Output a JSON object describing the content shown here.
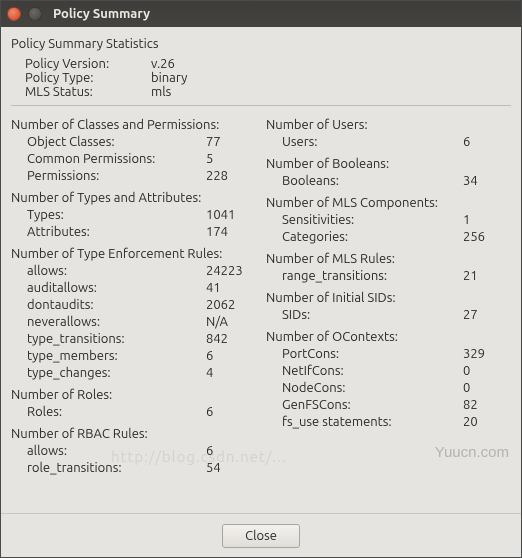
{
  "window": {
    "title": "Policy Summary"
  },
  "header": {
    "title": "Policy Summary Statistics",
    "rows": [
      {
        "k": "Policy Version:",
        "v": "v.26"
      },
      {
        "k": "Policy Type:",
        "v": "binary"
      },
      {
        "k": "MLS Status:",
        "v": "mls"
      }
    ]
  },
  "left": [
    {
      "head": "Number of Classes and Permissions:",
      "rows": [
        {
          "l": "Object Classes:",
          "n": "77"
        },
        {
          "l": "Common Permissions:",
          "n": "5"
        },
        {
          "l": "Permissions:",
          "n": "228"
        }
      ]
    },
    {
      "head": "Number of Types and Attributes:",
      "rows": [
        {
          "l": "Types:",
          "n": "1041"
        },
        {
          "l": "Attributes:",
          "n": "174"
        }
      ]
    },
    {
      "head": "Number of Type Enforcement Rules:",
      "rows": [
        {
          "l": "allows:",
          "n": "24223"
        },
        {
          "l": "auditallows:",
          "n": "41"
        },
        {
          "l": "dontaudits:",
          "n": "2062"
        },
        {
          "l": "neverallows:",
          "n": "N/A"
        },
        {
          "l": "type_transitions:",
          "n": "842"
        },
        {
          "l": "type_members:",
          "n": "6"
        },
        {
          "l": "type_changes:",
          "n": "4"
        }
      ]
    },
    {
      "head": "Number of Roles:",
      "rows": [
        {
          "l": "Roles:",
          "n": "6"
        }
      ]
    },
    {
      "head": "Number of RBAC Rules:",
      "rows": [
        {
          "l": "allows:",
          "n": "6"
        },
        {
          "l": "role_transitions:",
          "n": "54"
        }
      ]
    }
  ],
  "right": [
    {
      "head": "Number of Users:",
      "rows": [
        {
          "l": "Users:",
          "n": "6"
        }
      ]
    },
    {
      "head": "Number of Booleans:",
      "rows": [
        {
          "l": "Booleans:",
          "n": "34"
        }
      ]
    },
    {
      "head": "Number of MLS Components:",
      "rows": [
        {
          "l": "Sensitivities:",
          "n": "1"
        },
        {
          "l": "Categories:",
          "n": "256"
        }
      ]
    },
    {
      "head": "Number of MLS Rules:",
      "rows": [
        {
          "l": "range_transitions:",
          "n": "21"
        }
      ]
    },
    {
      "head": "Number of Initial SIDs:",
      "rows": [
        {
          "l": "SIDs:",
          "n": "27"
        }
      ]
    },
    {
      "head": "Number of OContexts:",
      "rows": [
        {
          "l": "PortCons:",
          "n": "329"
        },
        {
          "l": "NetIfCons:",
          "n": "0"
        },
        {
          "l": "NodeCons:",
          "n": "0"
        },
        {
          "l": "GenFSCons:",
          "n": "82"
        },
        {
          "l": "fs_use statements:",
          "n": "20"
        }
      ]
    }
  ],
  "footer": {
    "close": "Close"
  },
  "watermark": "Yuucn.com",
  "ghost_url": "http://blog.csdn.net/..."
}
